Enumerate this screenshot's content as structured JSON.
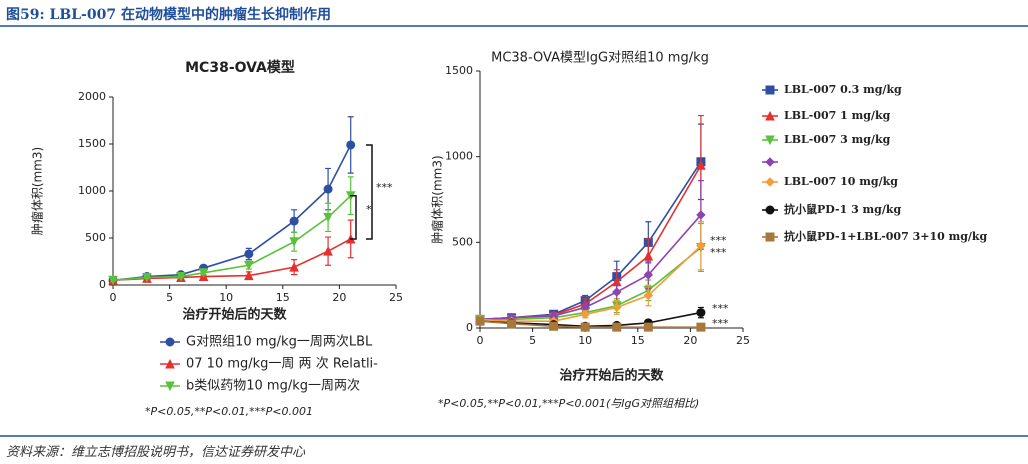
{
  "header": {
    "title": "图59: LBL-007 在动物模型中的肿瘤生长抑制作用"
  },
  "source": "资料来源：维立志博招股说明书，信达证券研发中心",
  "chart_data": [
    {
      "type": "line",
      "title": "MC38-OVA模型",
      "x_label": "治疗开始后的天数",
      "y_label": "肿瘤体积(mm3)",
      "x": [
        0,
        3,
        6,
        8,
        12,
        16,
        19,
        21
      ],
      "xlim": [
        0,
        25
      ],
      "xticks": [
        0,
        5,
        10,
        15,
        20,
        25
      ],
      "ylim": [
        0,
        2000
      ],
      "yticks": [
        0,
        500,
        1000,
        1500,
        2000
      ],
      "legend": "bottom",
      "series": [
        {
          "name": "G对照组10 mg/kg一周两次LBL",
          "color": "#2e4fa3",
          "marker": "circle",
          "values": [
            50,
            90,
            110,
            180,
            330,
            680,
            1020,
            1490
          ],
          "errors": [
            10,
            10,
            15,
            20,
            60,
            120,
            220,
            300
          ]
        },
        {
          "name": "07  10  mg/kg一周 两 次 Relatli-",
          "color": "#e53030",
          "marker": "triangle",
          "values": [
            50,
            70,
            80,
            90,
            100,
            190,
            360,
            490
          ],
          "errors": [
            10,
            10,
            10,
            15,
            40,
            80,
            150,
            200
          ]
        },
        {
          "name": "b类似药物10 mg/kg一周两次",
          "color": "#5cc13a",
          "marker": "triangle-down",
          "values": [
            50,
            80,
            90,
            130,
            210,
            460,
            720,
            950
          ],
          "errors": [
            10,
            10,
            15,
            20,
            40,
            100,
            150,
            200
          ]
        }
      ],
      "annotations": [
        "***",
        "*"
      ],
      "footnote": "*P<0.05,**P<0.01,***P<0.001"
    },
    {
      "type": "line",
      "title": "MC38-OVA模型IgG对照组10 mg/kg",
      "x_label": "治疗开始后的天数",
      "y_label": "肿瘤体积(mm3)",
      "x": [
        0,
        3,
        7,
        10,
        13,
        16,
        21
      ],
      "xlim": [
        0,
        25
      ],
      "xticks": [
        0,
        5,
        10,
        15,
        20,
        25
      ],
      "ylim": [
        0,
        1500
      ],
      "yticks": [
        0,
        500,
        1000,
        1500
      ],
      "legend": "right",
      "series": [
        {
          "name": "LBL-007 0.3 mg/kg",
          "color": "#2e4fa3",
          "marker": "square",
          "values": [
            50,
            60,
            80,
            160,
            300,
            500,
            970
          ],
          "errors": [
            5,
            10,
            15,
            30,
            90,
            120,
            220
          ]
        },
        {
          "name": "LBL-007 1 mg/kg",
          "color": "#e53030",
          "marker": "triangle",
          "values": [
            50,
            60,
            75,
            140,
            270,
            420,
            950
          ],
          "errors": [
            5,
            10,
            15,
            30,
            70,
            100,
            290
          ]
        },
        {
          "name": "LBL-007 3 mg/kg",
          "color": "#5cc13a",
          "marker": "triangle-down",
          "values": [
            50,
            50,
            60,
            90,
            130,
            220,
            470
          ],
          "errors": [
            5,
            10,
            10,
            20,
            40,
            60,
            140
          ]
        },
        {
          "name": null,
          "color": "#8e44ad",
          "marker": "diamond",
          "values": [
            50,
            60,
            70,
            120,
            210,
            310,
            660
          ],
          "errors": [
            5,
            10,
            10,
            25,
            50,
            80,
            200
          ]
        },
        {
          "name": "LBL-007  10  mg/kg",
          "color": "#f39c3a",
          "marker": "diamond",
          "values": [
            50,
            40,
            40,
            80,
            120,
            190,
            480
          ],
          "errors": [
            5,
            10,
            10,
            20,
            40,
            60,
            140
          ]
        },
        {
          "name": "抗小鼠PD-1 3 mg/kg",
          "color": "#111111",
          "marker": "circle",
          "values": [
            40,
            30,
            20,
            10,
            15,
            30,
            90
          ],
          "errors": [
            5,
            5,
            5,
            5,
            5,
            10,
            30
          ]
        },
        {
          "name": "抗小鼠PD-1+LBL-007 3+10 mg/kg",
          "color": "#a8773a",
          "marker": "square",
          "values": [
            40,
            25,
            10,
            5,
            5,
            5,
            5
          ],
          "errors": [
            5,
            5,
            5,
            3,
            3,
            3,
            3
          ]
        }
      ],
      "annotations": [
        "***",
        "***",
        "***",
        "***"
      ],
      "footnote": "*P<0.05,**P<0.01,***P<0.001(与IgG对照组相比)"
    }
  ]
}
